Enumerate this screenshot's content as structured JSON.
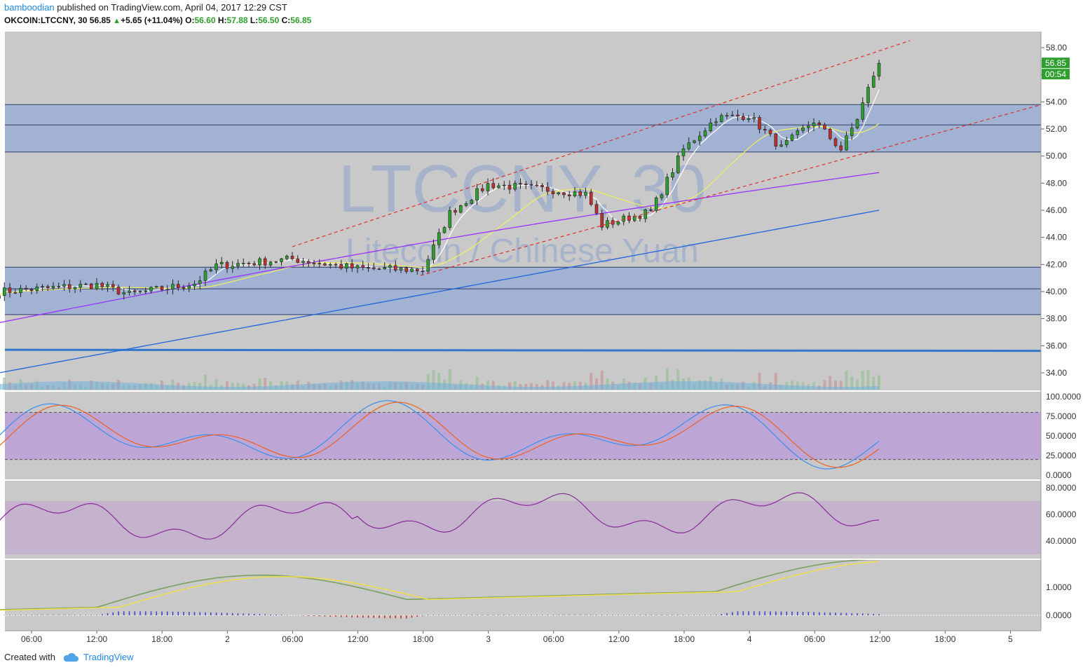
{
  "header": {
    "user": "bamboodian",
    "published_text": "published on TradingView.com, April 04, 2017 12:29 CST",
    "symbol_interval": "OKCOIN:LTCCNY, 30",
    "last_price": "56.85",
    "change": "+5.65 (+11.04%)",
    "open_label": "O:",
    "open": "56.60",
    "high_label": "H:",
    "high": "57.88",
    "low_label": "L:",
    "low": "56.50",
    "close_label": "C:",
    "close": "56.85"
  },
  "watermark": {
    "symbol": "LTCCNY, 30",
    "description": "Litecoin / Chinese Yuan"
  },
  "footer": {
    "created_with": "Created with",
    "brand": "TradingView"
  },
  "colors": {
    "up": "#2e9e2e",
    "down": "#c0302e",
    "pane_bg": "#c9c9c9",
    "zone": "#9aaed4",
    "channel": "#e03030",
    "ma_white": "#ffffff",
    "ma_yellow": "#f0f060",
    "ma_purple": "#9933ff",
    "ma_blue": "#2266dd",
    "stoch_k": "#3b8ef0",
    "stoch_d": "#f06020",
    "rsi": "#8a2a9a",
    "price_badge": "#2e9e2e"
  },
  "chart_data": [
    {
      "type": "candlestick",
      "pane": "price",
      "ylim": [
        32.8,
        59.0
      ],
      "y_ticks": [
        "58.00",
        "56.00",
        "54.00",
        "52.00",
        "50.00",
        "48.00",
        "46.00",
        "44.00",
        "42.00",
        "40.00",
        "38.00",
        "36.00",
        "34.00"
      ],
      "x_ticks": [
        "06:00",
        "12:00",
        "18:00",
        "2",
        "06:00",
        "12:00",
        "18:00",
        "3",
        "06:00",
        "12:00",
        "18:00",
        "4",
        "06:00",
        "12:00",
        "18:00",
        "5"
      ],
      "last_price_label": "56.85",
      "countdown_label": "00:54",
      "key_points": [
        {
          "t": "Apr 1 03:00",
          "close": 40.0
        },
        {
          "t": "Apr 1 12:00",
          "close": 40.5
        },
        {
          "t": "Apr 1 15:00",
          "close": 39.8
        },
        {
          "t": "Apr 1 21:00",
          "close": 40.6
        },
        {
          "t": "Apr 1 23:00",
          "close": 41.9
        },
        {
          "t": "Apr 2 06:00",
          "close": 42.4
        },
        {
          "t": "Apr 2 12:00",
          "close": 41.7
        },
        {
          "t": "Apr 2 18:00",
          "close": 41.6
        },
        {
          "t": "Apr 2 20:30",
          "close": 45.8
        },
        {
          "t": "Apr 3 00:00",
          "close": 47.9
        },
        {
          "t": "Apr 3 06:00",
          "close": 47.5
        },
        {
          "t": "Apr 3 09:00",
          "close": 47.2
        },
        {
          "t": "Apr 3 10:30",
          "close": 44.9
        },
        {
          "t": "Apr 3 15:00",
          "close": 45.9
        },
        {
          "t": "Apr 3 18:00",
          "close": 50.5
        },
        {
          "t": "Apr 3 21:00",
          "close": 52.8
        },
        {
          "t": "Apr 4 00:00",
          "close": 53.0
        },
        {
          "t": "Apr 4 03:00",
          "close": 50.6
        },
        {
          "t": "Apr 4 06:00",
          "close": 52.6
        },
        {
          "t": "Apr 4 08:30",
          "close": 50.5
        },
        {
          "t": "Apr 4 10:00",
          "close": 52.8
        },
        {
          "t": "Apr 4 11:30",
          "close": 56.0
        },
        {
          "t": "Apr 4 12:00",
          "close": 56.85
        }
      ],
      "zones": [
        [
          50.3,
          53.8
        ],
        [
          38.3,
          41.8
        ]
      ],
      "zone_midlines": [
        52.3,
        40.2
      ],
      "horizontal_line": 35.7
    },
    {
      "type": "line",
      "pane": "stochastic",
      "ylim": [
        0,
        100
      ],
      "y_ticks": [
        "100.0000",
        "75.0000",
        "50.0000",
        "25.0000",
        "0.0000"
      ],
      "band": [
        20,
        80
      ]
    },
    {
      "type": "line",
      "pane": "rsi",
      "ylim": [
        30,
        85
      ],
      "y_ticks": [
        "80.0000",
        "60.0000",
        "40.0000"
      ],
      "band": [
        30,
        70
      ]
    },
    {
      "type": "line",
      "pane": "macd",
      "ylim": [
        -0.4,
        2.3
      ],
      "y_ticks": [
        "1.0000",
        "0.0000"
      ]
    }
  ]
}
